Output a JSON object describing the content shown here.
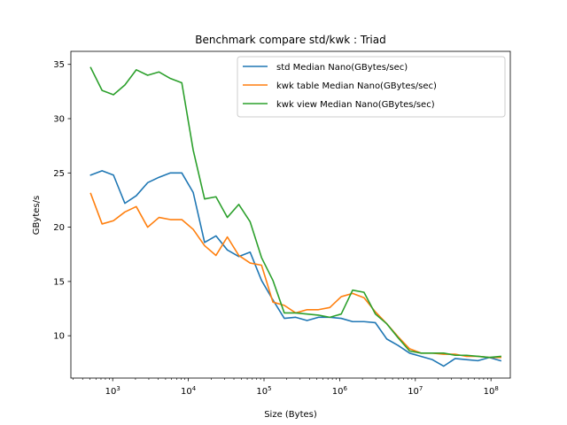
{
  "chart_data": {
    "type": "line",
    "title": "Benchmark compare std/kwk : Triad",
    "xlabel": "Size (Bytes)",
    "ylabel": "GBytes/s",
    "xscale": "log",
    "xlim": [
      280,
      180000000
    ],
    "ylim": [
      6.1,
      36.2
    ],
    "yticks": [
      10,
      15,
      20,
      25,
      30,
      35
    ],
    "xticks": [
      {
        "value": 1000,
        "base": "10",
        "exp": "3"
      },
      {
        "value": 10000,
        "base": "10",
        "exp": "4"
      },
      {
        "value": 100000,
        "base": "10",
        "exp": "5"
      },
      {
        "value": 1000000,
        "base": "10",
        "exp": "6"
      },
      {
        "value": 10000000,
        "base": "10",
        "exp": "7"
      },
      {
        "value": 100000000,
        "base": "10",
        "exp": "8"
      }
    ],
    "legend_position": "top-right",
    "grid": false,
    "x": [
      512,
      724,
      1024,
      1448,
      2048,
      2896,
      4096,
      5793,
      8192,
      11585,
      16384,
      23170,
      32768,
      46341,
      65536,
      92682,
      131072,
      185364,
      262144,
      370728,
      524288,
      741455,
      1048576,
      1482910,
      2097152,
      2965821,
      4194304,
      5931642,
      8388608,
      11863283,
      16777216,
      23726566,
      33554432,
      47453133,
      67108864,
      94906265,
      134217728
    ],
    "series": [
      {
        "name": "std Median Nano(GBytes/sec)",
        "color": "#1f77b4",
        "values": [
          24.8,
          25.2,
          24.8,
          22.2,
          22.9,
          24.1,
          24.6,
          25.0,
          25.0,
          23.2,
          18.6,
          19.2,
          17.9,
          17.3,
          17.7,
          15.1,
          13.3,
          11.6,
          11.7,
          11.4,
          11.7,
          11.7,
          11.6,
          11.3,
          11.3,
          11.2,
          9.7,
          9.1,
          8.4,
          8.1,
          7.8,
          7.2,
          7.9,
          7.8,
          7.7,
          8.0,
          7.7
        ]
      },
      {
        "name": "kwk table Median Nano(GBytes/sec)",
        "color": "#ff7f0e",
        "values": [
          23.1,
          20.3,
          20.6,
          21.4,
          21.9,
          20.0,
          20.9,
          20.7,
          20.7,
          19.8,
          18.3,
          17.4,
          19.1,
          17.4,
          16.7,
          16.5,
          13.1,
          12.8,
          12.1,
          12.4,
          12.4,
          12.6,
          13.6,
          13.9,
          13.5,
          12.2,
          11.1,
          9.9,
          8.8,
          8.4,
          8.4,
          8.3,
          8.3,
          8.1,
          8.1,
          8.0,
          8.0
        ]
      },
      {
        "name": "kwk view Median Nano(GBytes/sec)",
        "color": "#2ca02c",
        "values": [
          34.7,
          32.6,
          32.2,
          33.1,
          34.5,
          34.0,
          34.3,
          33.7,
          33.3,
          27.1,
          22.6,
          22.8,
          20.9,
          22.1,
          20.5,
          17.2,
          15.1,
          12.1,
          12.1,
          12.0,
          11.9,
          11.7,
          12.0,
          14.2,
          14.0,
          12.0,
          11.1,
          9.8,
          8.6,
          8.4,
          8.4,
          8.4,
          8.2,
          8.2,
          8.1,
          8.0,
          8.1
        ]
      }
    ]
  }
}
